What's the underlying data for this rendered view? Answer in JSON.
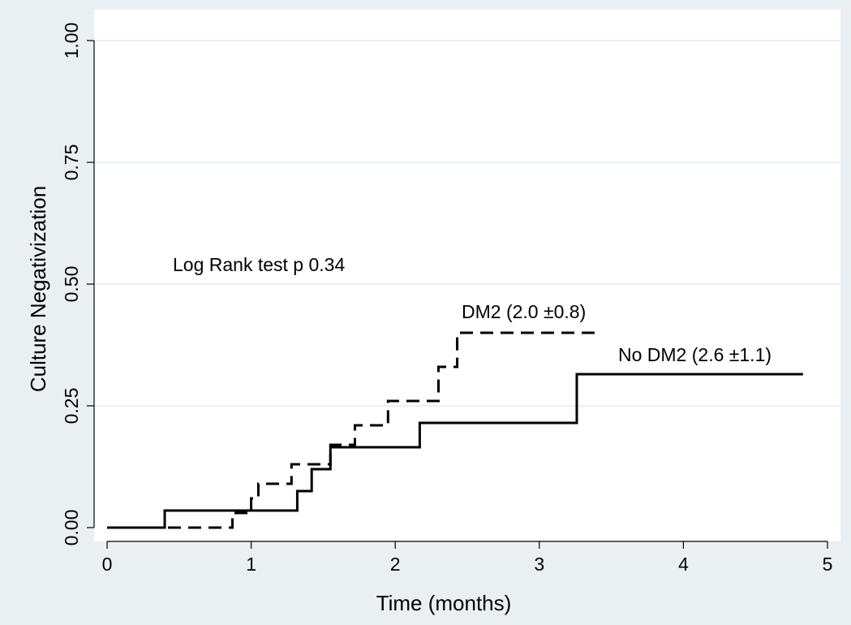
{
  "chart_data": {
    "type": "line",
    "step": true,
    "xlabel": "Time (months)",
    "ylabel": "Culture Negativization",
    "xlim": [
      0,
      5
    ],
    "ylim": [
      0,
      1
    ],
    "x_ticks": [
      "0",
      "1",
      "2",
      "3",
      "4",
      "5"
    ],
    "y_ticks": [
      "0.00",
      "0.25",
      "0.50",
      "0.75",
      "1.00"
    ],
    "grid": true,
    "annotation": "Log Rank test p 0.34",
    "series": [
      {
        "name": "DM2 (2.0 ±0.8)",
        "line_style": "dashed",
        "color": "#000000",
        "x": [
          0,
          0.87,
          1.0,
          1.05,
          1.28,
          1.55,
          1.72,
          1.95,
          2.3,
          2.43,
          3.4
        ],
        "y": [
          0,
          0.03,
          0.06,
          0.09,
          0.13,
          0.17,
          0.21,
          0.26,
          0.33,
          0.4,
          0.4
        ]
      },
      {
        "name": "No DM2 (2.6 ±1.1)",
        "line_style": "solid",
        "color": "#000000",
        "x": [
          0,
          0.4,
          1.32,
          1.42,
          1.55,
          2.17,
          3.26,
          4.83
        ],
        "y": [
          0,
          0.035,
          0.075,
          0.12,
          0.165,
          0.215,
          0.315,
          0.315
        ]
      }
    ]
  }
}
